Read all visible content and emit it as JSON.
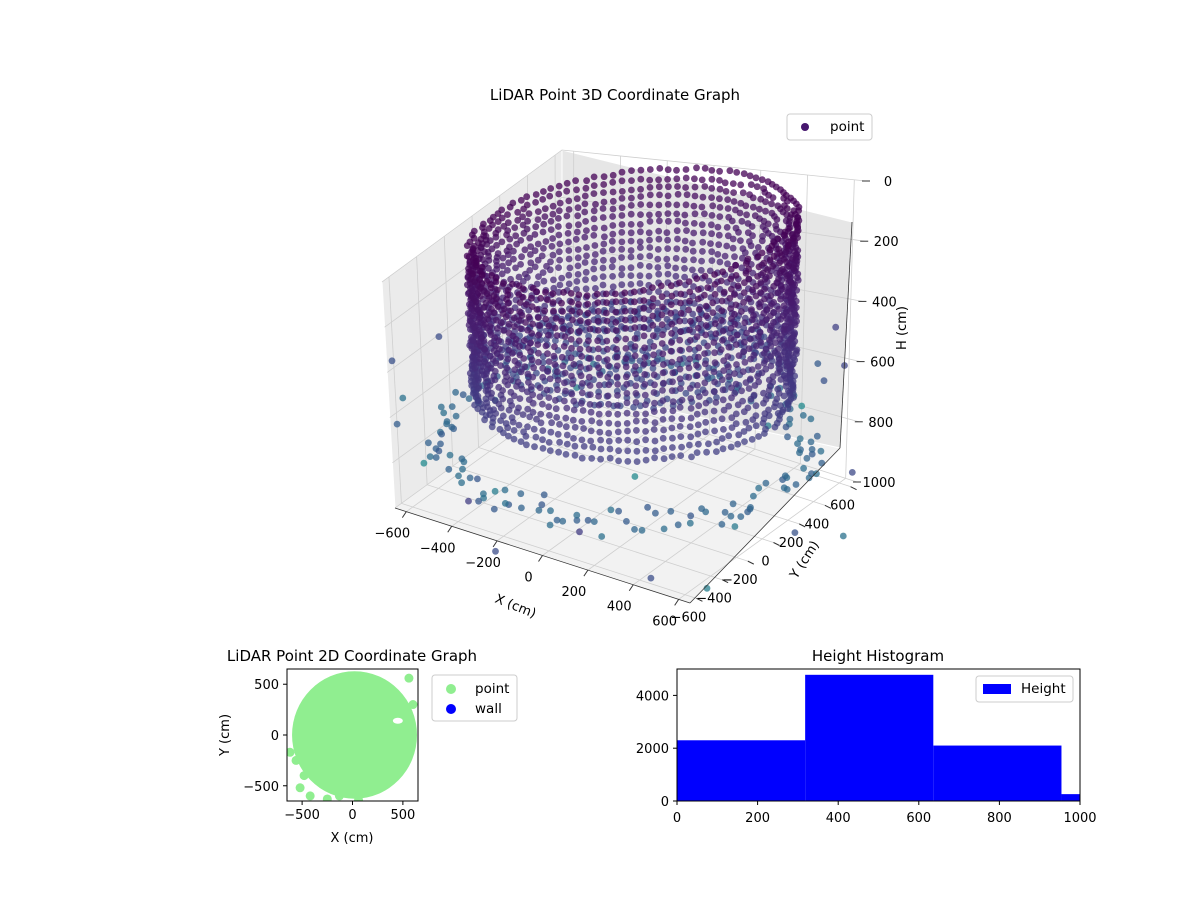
{
  "chart_data": [
    {
      "type": "scatter3d",
      "title": "LiDAR Point 3D Coordinate Graph",
      "xlabel": "X (cm)",
      "ylabel": "Y (cm)",
      "zlabel": "H (cm)",
      "xlim": [
        -650,
        650
      ],
      "ylim": [
        -650,
        650
      ],
      "zlim": [
        1000,
        0
      ],
      "xticks": [
        -600,
        -400,
        -200,
        0,
        200,
        400,
        600
      ],
      "yticks": [
        -600,
        -400,
        -200,
        0,
        200,
        400,
        600
      ],
      "zticks": [
        0,
        200,
        400,
        600,
        800,
        1000
      ],
      "legend": {
        "labels": [
          "point"
        ],
        "placement": "top-right"
      },
      "grid": true,
      "colormap": "viridis",
      "series": [
        {
          "name": "point",
          "structure": {
            "ring_radius_cm": 600,
            "ring_height_range_cm": [
              0,
              640
            ],
            "floor_height_cm": 470,
            "lower_ring_height_cm": 800,
            "floor_radius_cm": 520
          },
          "outliers": [
            [
              -900,
              -200,
              600
            ],
            [
              -800,
              -300,
              700
            ],
            [
              -750,
              -100,
              500
            ],
            [
              -700,
              150,
              650
            ],
            [
              -600,
              -500,
              850
            ],
            [
              -350,
              -600,
              900
            ],
            [
              -200,
              -650,
              800
            ],
            [
              -50,
              -500,
              950
            ],
            [
              150,
              -620,
              880
            ],
            [
              300,
              -450,
              700
            ],
            [
              450,
              -600,
              980
            ],
            [
              650,
              -300,
              850
            ],
            [
              700,
              0,
              600
            ],
            [
              720,
              200,
              450
            ],
            [
              680,
              400,
              400
            ],
            [
              750,
              350,
              500
            ],
            [
              800,
              -100,
              900
            ],
            [
              640,
              -500,
              1000
            ],
            [
              900,
              100,
              950
            ],
            [
              850,
              250,
              800
            ],
            [
              -650,
              300,
              820
            ],
            [
              -500,
              500,
              900
            ],
            [
              -300,
              650,
              870
            ],
            [
              0,
              700,
              880
            ],
            [
              400,
              650,
              800
            ],
            [
              550,
              550,
              650
            ],
            [
              -850,
              350,
              1000
            ],
            [
              -950,
              -100,
              950
            ],
            [
              200,
              750,
              950
            ],
            [
              -150,
              -750,
              990
            ]
          ]
        }
      ]
    },
    {
      "type": "scatter",
      "title": "LiDAR Point 2D Coordinate Graph",
      "xlabel": "X (cm)",
      "ylabel": "Y (cm)",
      "xlim": [
        -650,
        650
      ],
      "ylim": [
        -650,
        650
      ],
      "xticks": [
        -500,
        0,
        500
      ],
      "yticks": [
        500,
        0,
        -500
      ],
      "legend": {
        "labels": [
          "point",
          "wall"
        ],
        "placement": "right-outside"
      },
      "series": [
        {
          "name": "point",
          "color": "#90ee90",
          "shape": "disc",
          "center": [
            20,
            0
          ],
          "radius": 620
        },
        {
          "name": "wall",
          "color": "#0000ff",
          "points": []
        }
      ]
    },
    {
      "type": "histogram",
      "title": "Height Histogram",
      "xlabel": "",
      "ylabel": "",
      "xlim": [
        0,
        1000
      ],
      "ylim": [
        0,
        5000
      ],
      "xticks": [
        0,
        200,
        400,
        600,
        800,
        1000
      ],
      "yticks": [
        0,
        2000,
        4000
      ],
      "legend": {
        "labels": [
          "Height"
        ],
        "placement": "top-right"
      },
      "color": "#0000ff",
      "bins": [
        {
          "start": 0,
          "end": 318,
          "count": 2300
        },
        {
          "start": 318,
          "end": 636,
          "count": 4780
        },
        {
          "start": 636,
          "end": 954,
          "count": 2100
        },
        {
          "start": 954,
          "end": 1000,
          "count": 260
        }
      ]
    }
  ]
}
